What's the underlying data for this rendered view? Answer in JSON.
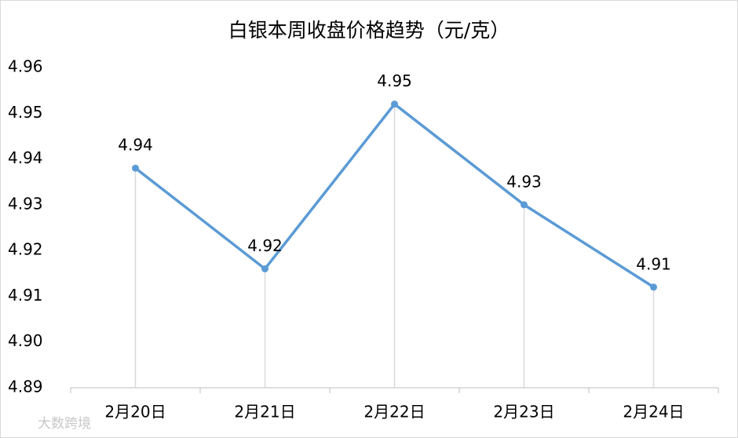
{
  "chart_data": {
    "type": "line",
    "title": "白银本周收盘价格趋势（元/克）",
    "categories": [
      "2月20日",
      "2月21日",
      "2月22日",
      "2月23日",
      "2月24日"
    ],
    "values": [
      4.938,
      4.916,
      4.952,
      4.93,
      4.912
    ],
    "value_labels": [
      "4.94",
      "4.92",
      "4.95",
      "4.93",
      "4.91"
    ],
    "color": "#5b9bd5",
    "ylim": [
      4.89,
      4.96
    ],
    "yticks": [
      4.89,
      {
        "value": 4.9,
        "label": "4.90"
      },
      4.91,
      4.92,
      4.93,
      4.94,
      4.95,
      4.96
    ],
    "drop_lines": true,
    "watermark": "大数跨境"
  }
}
